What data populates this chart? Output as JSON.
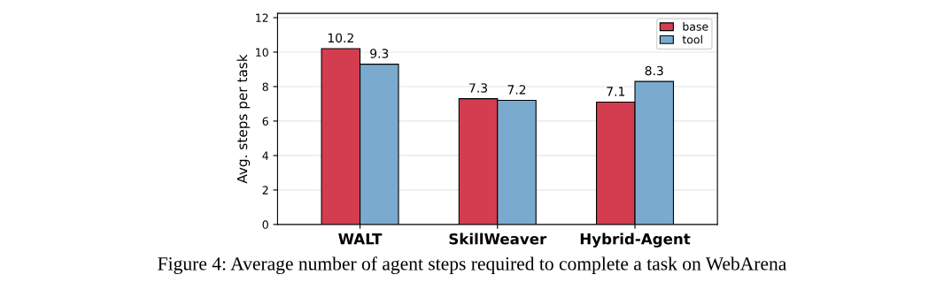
{
  "chart_data": {
    "type": "bar",
    "ylabel": "Avg. steps per task",
    "categories": [
      "WALT",
      "SkillWeaver",
      "Hybrid-Agent"
    ],
    "series": [
      {
        "name": "base",
        "color": "#d43d4f",
        "values": [
          10.2,
          7.3,
          7.1
        ]
      },
      {
        "name": "tool",
        "color": "#7aabcf",
        "values": [
          9.3,
          7.2,
          8.3
        ]
      }
    ],
    "ylim": [
      0,
      12.25
    ],
    "yticks": [
      0,
      2,
      4,
      6,
      8,
      10,
      12
    ],
    "grid": "y",
    "legend": "top right",
    "data_labels": true,
    "annotations": [
      "Figure 4: Average number of agent steps required to complete a task on WebArena"
    ]
  }
}
